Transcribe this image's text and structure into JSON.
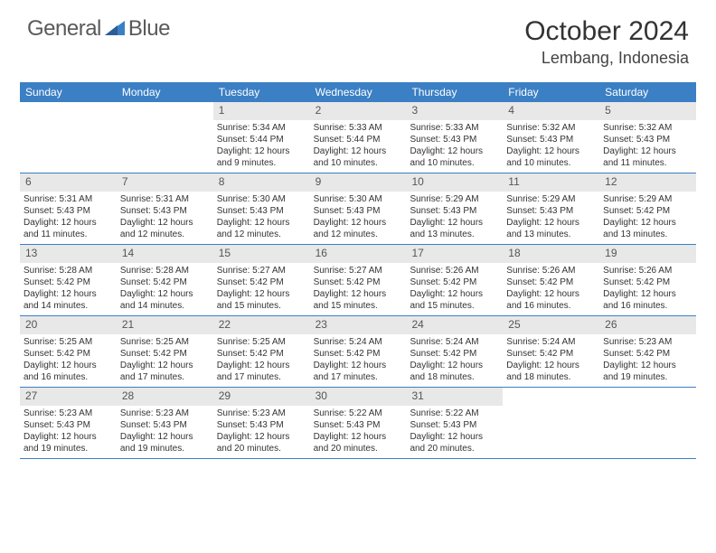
{
  "logo": {
    "text1": "General",
    "text2": "Blue"
  },
  "title": "October 2024",
  "location": "Lembang, Indonesia",
  "colors": {
    "header_bg": "#3b7fc4",
    "header_text": "#ffffff",
    "daynum_bg": "#e8e8e8",
    "border": "#3b7fc4",
    "body_text": "#333333"
  },
  "typography": {
    "title_fontsize": 30,
    "location_fontsize": 18,
    "dayheader_fontsize": 12,
    "daynum_fontsize": 12,
    "cell_fontsize": 10
  },
  "day_headers": [
    "Sunday",
    "Monday",
    "Tuesday",
    "Wednesday",
    "Thursday",
    "Friday",
    "Saturday"
  ],
  "weeks": [
    [
      {
        "n": "",
        "sr": "",
        "ss": "",
        "dl": ""
      },
      {
        "n": "",
        "sr": "",
        "ss": "",
        "dl": ""
      },
      {
        "n": "1",
        "sr": "Sunrise: 5:34 AM",
        "ss": "Sunset: 5:44 PM",
        "dl": "Daylight: 12 hours and 9 minutes."
      },
      {
        "n": "2",
        "sr": "Sunrise: 5:33 AM",
        "ss": "Sunset: 5:44 PM",
        "dl": "Daylight: 12 hours and 10 minutes."
      },
      {
        "n": "3",
        "sr": "Sunrise: 5:33 AM",
        "ss": "Sunset: 5:43 PM",
        "dl": "Daylight: 12 hours and 10 minutes."
      },
      {
        "n": "4",
        "sr": "Sunrise: 5:32 AM",
        "ss": "Sunset: 5:43 PM",
        "dl": "Daylight: 12 hours and 10 minutes."
      },
      {
        "n": "5",
        "sr": "Sunrise: 5:32 AM",
        "ss": "Sunset: 5:43 PM",
        "dl": "Daylight: 12 hours and 11 minutes."
      }
    ],
    [
      {
        "n": "6",
        "sr": "Sunrise: 5:31 AM",
        "ss": "Sunset: 5:43 PM",
        "dl": "Daylight: 12 hours and 11 minutes."
      },
      {
        "n": "7",
        "sr": "Sunrise: 5:31 AM",
        "ss": "Sunset: 5:43 PM",
        "dl": "Daylight: 12 hours and 12 minutes."
      },
      {
        "n": "8",
        "sr": "Sunrise: 5:30 AM",
        "ss": "Sunset: 5:43 PM",
        "dl": "Daylight: 12 hours and 12 minutes."
      },
      {
        "n": "9",
        "sr": "Sunrise: 5:30 AM",
        "ss": "Sunset: 5:43 PM",
        "dl": "Daylight: 12 hours and 12 minutes."
      },
      {
        "n": "10",
        "sr": "Sunrise: 5:29 AM",
        "ss": "Sunset: 5:43 PM",
        "dl": "Daylight: 12 hours and 13 minutes."
      },
      {
        "n": "11",
        "sr": "Sunrise: 5:29 AM",
        "ss": "Sunset: 5:43 PM",
        "dl": "Daylight: 12 hours and 13 minutes."
      },
      {
        "n": "12",
        "sr": "Sunrise: 5:29 AM",
        "ss": "Sunset: 5:42 PM",
        "dl": "Daylight: 12 hours and 13 minutes."
      }
    ],
    [
      {
        "n": "13",
        "sr": "Sunrise: 5:28 AM",
        "ss": "Sunset: 5:42 PM",
        "dl": "Daylight: 12 hours and 14 minutes."
      },
      {
        "n": "14",
        "sr": "Sunrise: 5:28 AM",
        "ss": "Sunset: 5:42 PM",
        "dl": "Daylight: 12 hours and 14 minutes."
      },
      {
        "n": "15",
        "sr": "Sunrise: 5:27 AM",
        "ss": "Sunset: 5:42 PM",
        "dl": "Daylight: 12 hours and 15 minutes."
      },
      {
        "n": "16",
        "sr": "Sunrise: 5:27 AM",
        "ss": "Sunset: 5:42 PM",
        "dl": "Daylight: 12 hours and 15 minutes."
      },
      {
        "n": "17",
        "sr": "Sunrise: 5:26 AM",
        "ss": "Sunset: 5:42 PM",
        "dl": "Daylight: 12 hours and 15 minutes."
      },
      {
        "n": "18",
        "sr": "Sunrise: 5:26 AM",
        "ss": "Sunset: 5:42 PM",
        "dl": "Daylight: 12 hours and 16 minutes."
      },
      {
        "n": "19",
        "sr": "Sunrise: 5:26 AM",
        "ss": "Sunset: 5:42 PM",
        "dl": "Daylight: 12 hours and 16 minutes."
      }
    ],
    [
      {
        "n": "20",
        "sr": "Sunrise: 5:25 AM",
        "ss": "Sunset: 5:42 PM",
        "dl": "Daylight: 12 hours and 16 minutes."
      },
      {
        "n": "21",
        "sr": "Sunrise: 5:25 AM",
        "ss": "Sunset: 5:42 PM",
        "dl": "Daylight: 12 hours and 17 minutes."
      },
      {
        "n": "22",
        "sr": "Sunrise: 5:25 AM",
        "ss": "Sunset: 5:42 PM",
        "dl": "Daylight: 12 hours and 17 minutes."
      },
      {
        "n": "23",
        "sr": "Sunrise: 5:24 AM",
        "ss": "Sunset: 5:42 PM",
        "dl": "Daylight: 12 hours and 17 minutes."
      },
      {
        "n": "24",
        "sr": "Sunrise: 5:24 AM",
        "ss": "Sunset: 5:42 PM",
        "dl": "Daylight: 12 hours and 18 minutes."
      },
      {
        "n": "25",
        "sr": "Sunrise: 5:24 AM",
        "ss": "Sunset: 5:42 PM",
        "dl": "Daylight: 12 hours and 18 minutes."
      },
      {
        "n": "26",
        "sr": "Sunrise: 5:23 AM",
        "ss": "Sunset: 5:42 PM",
        "dl": "Daylight: 12 hours and 19 minutes."
      }
    ],
    [
      {
        "n": "27",
        "sr": "Sunrise: 5:23 AM",
        "ss": "Sunset: 5:43 PM",
        "dl": "Daylight: 12 hours and 19 minutes."
      },
      {
        "n": "28",
        "sr": "Sunrise: 5:23 AM",
        "ss": "Sunset: 5:43 PM",
        "dl": "Daylight: 12 hours and 19 minutes."
      },
      {
        "n": "29",
        "sr": "Sunrise: 5:23 AM",
        "ss": "Sunset: 5:43 PM",
        "dl": "Daylight: 12 hours and 20 minutes."
      },
      {
        "n": "30",
        "sr": "Sunrise: 5:22 AM",
        "ss": "Sunset: 5:43 PM",
        "dl": "Daylight: 12 hours and 20 minutes."
      },
      {
        "n": "31",
        "sr": "Sunrise: 5:22 AM",
        "ss": "Sunset: 5:43 PM",
        "dl": "Daylight: 12 hours and 20 minutes."
      },
      {
        "n": "",
        "sr": "",
        "ss": "",
        "dl": ""
      },
      {
        "n": "",
        "sr": "",
        "ss": "",
        "dl": ""
      }
    ]
  ]
}
